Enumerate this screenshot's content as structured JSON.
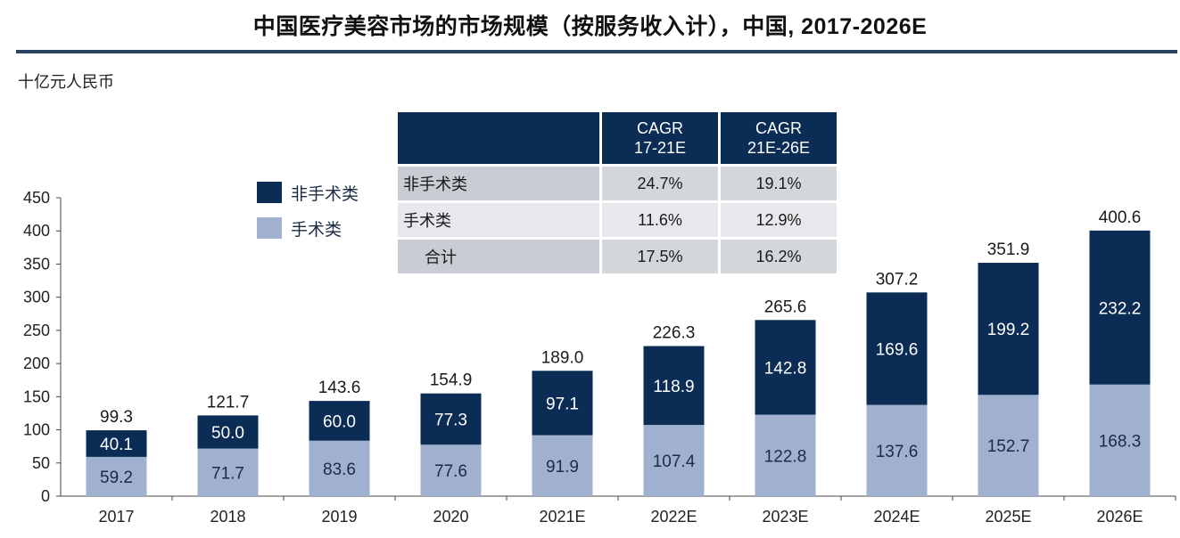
{
  "title": "中国医疗美容市场的市场规模（按服务收入计），中国, 2017-2026E",
  "unit": "十亿元人民币",
  "colors": {
    "non_surgical": "#0b2c55",
    "surgical": "#9fb1cf",
    "header": "#0b2c55"
  },
  "legend": [
    {
      "label": "非手术类",
      "color": "#0b2c55"
    },
    {
      "label": "手术类",
      "color": "#9fb1cf"
    }
  ],
  "cagr_table": {
    "headers": [
      "CAGR\n17-21E",
      "CAGR\n21E-26E"
    ],
    "rows": [
      {
        "name": "非手术类",
        "v1": "24.7%",
        "v2": "19.1%"
      },
      {
        "name": "手术类",
        "v1": "11.6%",
        "v2": "12.9%"
      },
      {
        "name": "合计",
        "v1": "17.5%",
        "v2": "16.2%"
      }
    ]
  },
  "chart_data": {
    "type": "bar",
    "stacked": true,
    "categories": [
      "2017",
      "2018",
      "2019",
      "2020",
      "2021E",
      "2022E",
      "2023E",
      "2024E",
      "2025E",
      "2026E"
    ],
    "series": [
      {
        "name": "手术类",
        "values": [
          59.2,
          71.7,
          83.6,
          77.6,
          91.9,
          107.4,
          122.8,
          137.6,
          152.7,
          168.3
        ],
        "color": "#9fb1cf"
      },
      {
        "name": "非手术类",
        "values": [
          40.1,
          50.0,
          60.0,
          77.3,
          97.1,
          118.9,
          142.8,
          169.6,
          199.2,
          232.2
        ],
        "color": "#0b2c55"
      }
    ],
    "totals": [
      99.3,
      121.7,
      143.6,
      154.9,
      189.0,
      226.3,
      265.6,
      307.2,
      351.9,
      400.6
    ],
    "yticks": [
      0,
      50,
      100,
      150,
      200,
      250,
      300,
      350,
      400,
      450
    ],
    "ylim": [
      0,
      450
    ],
    "grid": false,
    "legend_position": "top-left"
  }
}
